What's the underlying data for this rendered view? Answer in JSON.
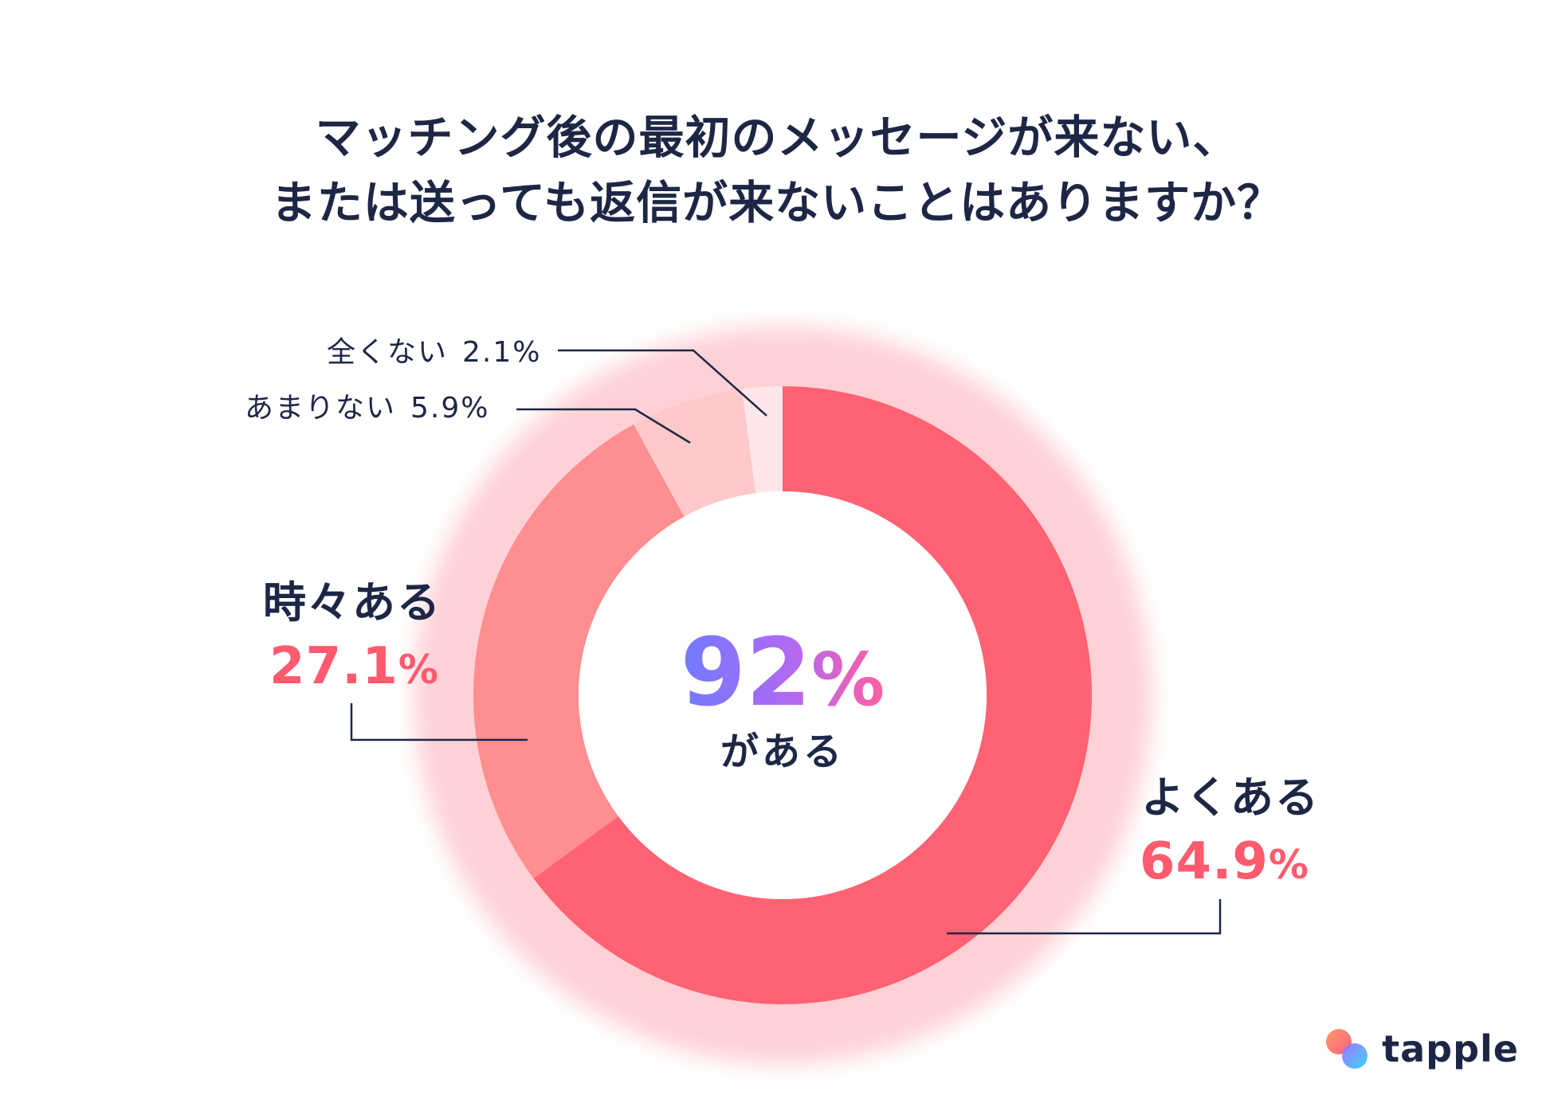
{
  "title": {
    "line1": "マッチング後の最初のメッセージが来ない、",
    "line2": "または送っても返信が来ないことはありますか？"
  },
  "chart_data": {
    "type": "pie",
    "categories": [
      "よくある",
      "時々ある",
      "あまりない",
      "全くない"
    ],
    "values": [
      64.9,
      27.1,
      5.9,
      2.1
    ],
    "value_labels": [
      "64.9%",
      "27.1%",
      "5.9%",
      "2.1%"
    ],
    "colors": [
      "#ff6272",
      "#ff8e90",
      "#ffc9c9",
      "#ffe6ea"
    ],
    "donut": true,
    "center": {
      "value_num": "92",
      "value_pct": "%",
      "sub": "がある",
      "gradient": [
        "#6f7bff",
        "#b269f2",
        "#ff5f9e"
      ]
    }
  },
  "labels": {
    "zenku": "全くない",
    "zenku_value": "2.1%",
    "amari": "あまりない",
    "amari_value": "5.9%",
    "tokidoki": "時々ある",
    "tokidoki_num": "27.1",
    "tokidoki_pct": "%",
    "yoku": "よくある",
    "yoku_num": "64.9",
    "yoku_pct": "%"
  },
  "brand": {
    "name": "tapple"
  },
  "colors": {
    "text": "#1d2745",
    "accent": "#ff5a6e"
  }
}
